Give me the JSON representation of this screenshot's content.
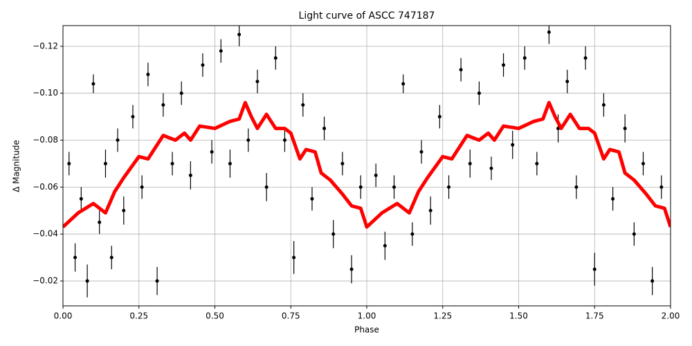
{
  "chart_data": {
    "type": "scatter",
    "title": "Light curve of ASCC 747187",
    "x_label": "Phase",
    "y_label": "Δ Magnitude",
    "xlim": [
      0,
      2
    ],
    "ylim": [
      -0.0094,
      -0.1288
    ],
    "xticks": [
      {
        "value": 0,
        "label": "0.00"
      },
      0.25,
      {
        "value": 0.5,
        "label": "0.50"
      },
      0.75,
      {
        "value": 1,
        "label": "1.00"
      },
      1.25,
      {
        "value": 1.5,
        "label": "1.50"
      },
      1.75,
      {
        "value": 2,
        "label": "2.00"
      }
    ],
    "yticks": [
      {
        "value": -0.12,
        "label": "−0.12"
      },
      {
        "value": -0.1,
        "label": "−0.10"
      },
      {
        "value": -0.08,
        "label": "−0.08"
      },
      {
        "value": -0.06,
        "label": "−0.06"
      },
      {
        "value": -0.04,
        "label": "−0.04"
      },
      {
        "value": -0.02,
        "label": "−0.02"
      }
    ],
    "grid": true,
    "series": [
      {
        "type": "errorbar",
        "color": "#000000",
        "x": [
          0.02,
          0.04,
          0.06,
          0.08,
          0.1,
          0.12,
          0.14,
          0.16,
          0.18,
          0.2,
          0.23,
          0.26,
          0.28,
          0.31,
          0.33,
          0.36,
          0.39,
          0.42,
          0.46,
          0.49,
          0.52,
          0.55,
          0.58,
          0.61,
          0.64,
          0.67,
          0.7,
          0.73,
          0.76,
          0.79,
          0.82,
          0.86,
          0.89,
          0.92,
          0.95,
          0.98,
          1.03,
          1.06,
          1.09,
          1.12,
          1.15,
          1.18,
          1.21,
          1.24,
          1.27,
          1.31,
          1.34,
          1.37,
          1.41,
          1.45,
          1.48,
          1.52,
          1.56,
          1.6,
          1.63,
          1.66,
          1.69,
          1.72,
          1.75,
          1.78,
          1.81,
          1.85,
          1.88,
          1.91,
          1.94,
          1.97
        ],
        "values": [
          -0.07,
          -0.03,
          -0.055,
          -0.02,
          -0.104,
          -0.045,
          -0.07,
          -0.03,
          -0.08,
          -0.05,
          -0.09,
          -0.06,
          -0.108,
          -0.02,
          -0.095,
          -0.07,
          -0.1,
          -0.065,
          -0.112,
          -0.075,
          -0.118,
          -0.07,
          -0.125,
          -0.08,
          -0.105,
          -0.06,
          -0.115,
          -0.08,
          -0.03,
          -0.095,
          -0.055,
          -0.085,
          -0.04,
          -0.07,
          -0.025,
          -0.06,
          -0.065,
          -0.035,
          -0.06,
          -0.104,
          -0.04,
          -0.075,
          -0.05,
          -0.09,
          -0.06,
          -0.11,
          -0.07,
          -0.1,
          -0.068,
          -0.112,
          -0.078,
          -0.115,
          -0.07,
          -0.126,
          -0.085,
          -0.105,
          -0.06,
          -0.115,
          -0.025,
          -0.095,
          -0.055,
          -0.085,
          -0.04,
          -0.07,
          -0.02,
          -0.06
        ],
        "errors": [
          0.005,
          0.006,
          0.005,
          0.007,
          0.004,
          0.005,
          0.006,
          0.005,
          0.005,
          0.006,
          0.005,
          0.005,
          0.005,
          0.006,
          0.005,
          0.005,
          0.005,
          0.006,
          0.005,
          0.005,
          0.005,
          0.006,
          0.005,
          0.005,
          0.005,
          0.006,
          0.005,
          0.005,
          0.007,
          0.005,
          0.005,
          0.005,
          0.006,
          0.005,
          0.006,
          0.005,
          0.005,
          0.006,
          0.005,
          0.004,
          0.005,
          0.005,
          0.006,
          0.005,
          0.005,
          0.005,
          0.006,
          0.005,
          0.005,
          0.005,
          0.006,
          0.005,
          0.005,
          0.005,
          0.006,
          0.005,
          0.005,
          0.005,
          0.007,
          0.005,
          0.005,
          0.006,
          0.005,
          0.005,
          0.006,
          0.005
        ]
      },
      {
        "type": "line",
        "color": "#ff0000",
        "x": [
          0,
          0.05,
          0.1,
          0.14,
          0.17,
          0.2,
          0.25,
          0.28,
          0.33,
          0.37,
          0.4,
          0.42,
          0.45,
          0.5,
          0.55,
          0.58,
          0.6,
          0.62,
          0.64,
          0.67,
          0.7,
          0.73,
          0.75,
          0.78,
          0.8,
          0.83,
          0.85,
          0.88,
          0.92,
          0.95,
          0.98,
          1.0,
          1.05,
          1.1,
          1.14,
          1.17,
          1.2,
          1.25,
          1.28,
          1.33,
          1.37,
          1.4,
          1.42,
          1.45,
          1.5,
          1.55,
          1.58,
          1.6,
          1.62,
          1.64,
          1.67,
          1.7,
          1.73,
          1.75,
          1.78,
          1.8,
          1.83,
          1.85,
          1.88,
          1.92,
          1.95,
          1.98,
          2.0
        ],
        "values": [
          -0.043,
          -0.049,
          -0.053,
          -0.049,
          -0.058,
          -0.064,
          -0.073,
          -0.072,
          -0.082,
          -0.08,
          -0.083,
          -0.08,
          -0.086,
          -0.085,
          -0.088,
          -0.089,
          -0.096,
          -0.09,
          -0.085,
          -0.091,
          -0.085,
          -0.085,
          -0.083,
          -0.072,
          -0.076,
          -0.075,
          -0.066,
          -0.063,
          -0.057,
          -0.052,
          -0.051,
          -0.043,
          -0.049,
          -0.053,
          -0.049,
          -0.058,
          -0.064,
          -0.073,
          -0.072,
          -0.082,
          -0.08,
          -0.083,
          -0.08,
          -0.086,
          -0.085,
          -0.088,
          -0.089,
          -0.096,
          -0.09,
          -0.085,
          -0.091,
          -0.085,
          -0.085,
          -0.083,
          -0.072,
          -0.076,
          -0.075,
          -0.066,
          -0.063,
          -0.057,
          -0.052,
          -0.051,
          -0.043
        ]
      }
    ]
  }
}
